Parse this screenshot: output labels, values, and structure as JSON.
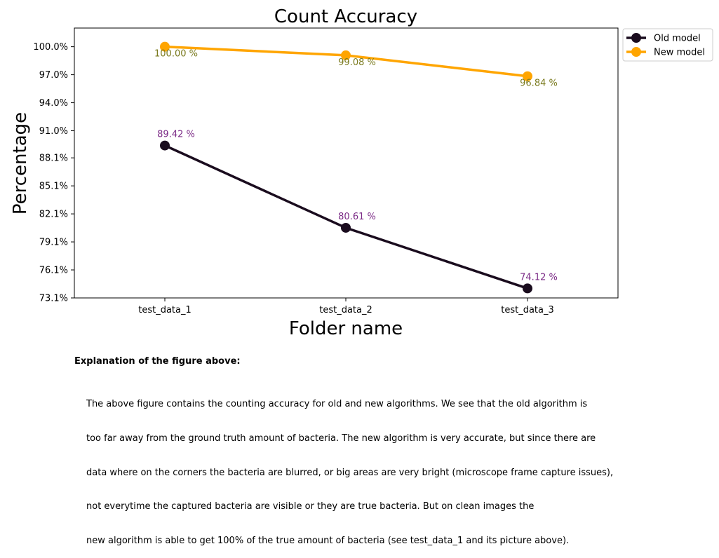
{
  "chart_data": {
    "type": "line",
    "title": "Count Accuracy",
    "xlabel": "Folder name",
    "ylabel": "Percentage",
    "categories": [
      "test_data_1",
      "test_data_2",
      "test_data_3"
    ],
    "ylim": [
      73.1,
      102.0
    ],
    "yticks": [
      73.1,
      76.1,
      79.1,
      82.1,
      85.1,
      88.1,
      91.0,
      94.0,
      97.0,
      100.0
    ],
    "ytick_labels": [
      "73.1%",
      "76.1%",
      "79.1%",
      "82.1%",
      "85.1%",
      "88.1%",
      "91.0%",
      "94.0%",
      "97.0%",
      "100.0%"
    ],
    "series": [
      {
        "name": "Old model",
        "values": [
          89.42,
          80.61,
          74.12
        ],
        "labels": [
          "89.42 %",
          "80.61 %",
          "74.12 %"
        ],
        "color": "#1a0c1e",
        "label_color": "#7b2a86",
        "label_position": "above"
      },
      {
        "name": "New model",
        "values": [
          100.0,
          99.08,
          96.84
        ],
        "labels": [
          "100.00 %",
          "99.08 %",
          "96.84 %"
        ],
        "color": "#ffa500",
        "label_color": "#7a7a1e",
        "label_position": "below"
      }
    ],
    "legend": "outside top-right",
    "grid": false
  },
  "explanation": {
    "title": "Explanation of the figure above:",
    "lines": [
      "The above figure contains the counting accuracy for old and new algorithms. We see that the old algorithm is",
      "too far away from the ground truth amount of bacteria. The new algorithm is very accurate, but since there are",
      "data where on the corners the bacteria are blurred, or big areas are very bright (microscope frame capture issues),",
      "not everytime the captured bacteria are visible or they are true bacteria. But on clean images the",
      "new algorithm is able to get 100% of the true amount of bacteria (see test_data_1 and its picture above)."
    ]
  }
}
